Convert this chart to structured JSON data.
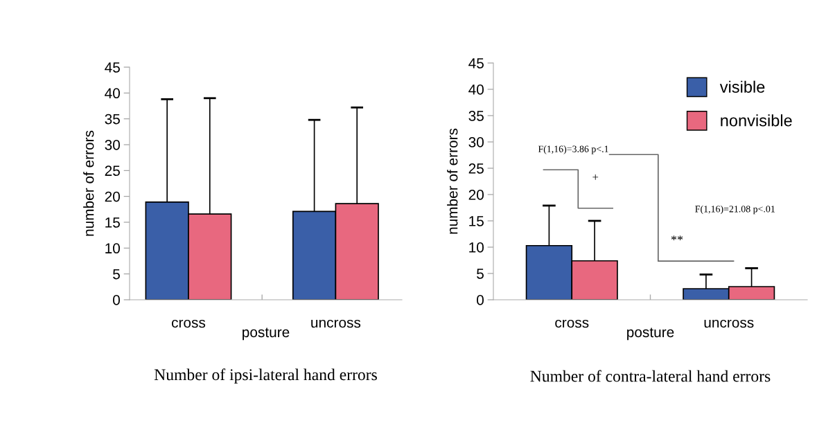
{
  "chart_data": [
    {
      "type": "bar",
      "title": "Number of ipsi-lateral hand errors",
      "xlabel": "posture",
      "ylabel": "number of errors",
      "categories": [
        "cross",
        "uncross"
      ],
      "series": [
        {
          "color": "#3a5fa8",
          "values": [
            18.9,
            17.1
          ],
          "errors": [
            [
              18.9,
              38.8
            ],
            [
              17.1,
              34.8
            ]
          ]
        },
        {
          "color": "#e8687f",
          "values": [
            16.6,
            18.6
          ],
          "errors": [
            [
              16.6,
              39.0
            ],
            [
              18.6,
              37.2
            ]
          ]
        }
      ],
      "ylim": [
        0,
        45
      ],
      "yticks": [
        0,
        5,
        10,
        15,
        20,
        25,
        30,
        35,
        40,
        45
      ],
      "grid": false,
      "legend": false
    },
    {
      "type": "bar",
      "title": "Number of contra-lateral hand errors",
      "xlabel": "posture",
      "ylabel": "number of errors",
      "categories": [
        "cross",
        "uncross"
      ],
      "series": [
        {
          "name": "visible",
          "color": "#3a5fa8",
          "values": [
            10.3,
            2.1
          ],
          "errors": [
            [
              10.3,
              17.9
            ],
            [
              2.1,
              4.8
            ]
          ]
        },
        {
          "name": "nonvisible",
          "color": "#e8687f",
          "values": [
            7.4,
            2.5
          ],
          "errors": [
            [
              7.4,
              15.0
            ],
            [
              2.5,
              6.0
            ]
          ]
        }
      ],
      "ylim": [
        0,
        45
      ],
      "yticks": [
        0,
        5,
        10,
        15,
        20,
        25,
        30,
        35,
        40,
        45
      ],
      "grid": false,
      "legend": "top right",
      "annotations": [
        "F(1,16)=3.86 p<.1",
        "+",
        "F(1,16)=21.08 p<.01",
        "**"
      ]
    }
  ]
}
